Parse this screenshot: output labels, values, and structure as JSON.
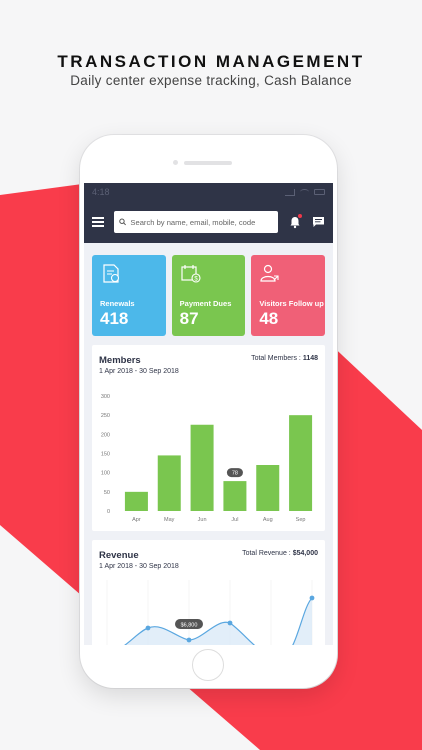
{
  "promo": {
    "title": "TRANSACTION MANAGEMENT",
    "subtitle": "Daily center expense tracking, Cash Balance"
  },
  "status_bar": {
    "time": "4:18"
  },
  "search": {
    "placeholder": "Search by name, email, mobile, code"
  },
  "stat_cards": [
    {
      "label": "Renewals",
      "value": "418",
      "color": "#4cb8ea",
      "icon": "document-refresh-icon"
    },
    {
      "label": "Payment Dues",
      "value": "87",
      "color": "#7ac64f",
      "icon": "calendar-dollar-icon"
    },
    {
      "label": "Visitors Follow up",
      "value": "48",
      "color": "#f06077",
      "icon": "user-return-icon"
    }
  ],
  "members": {
    "title": "Members",
    "range": "1 Apr 2018 - 30 Sep 2018",
    "total_label": "Total Members : ",
    "total_value": "1148"
  },
  "revenue": {
    "title": "Revenue",
    "range": "1 Apr 2018 - 30 Sep 2018",
    "total_label": "Total Revenue : ",
    "total_value": "$54,000",
    "callout": "$6,800"
  },
  "colors": {
    "accent_red": "#f93c4b",
    "appbar": "#2f3447",
    "bar_green": "#7ac64f",
    "line_blue": "#5aa7e0"
  },
  "chart_data": [
    {
      "type": "bar",
      "categories": [
        "Apr",
        "May",
        "Jun",
        "Jul",
        "Aug",
        "Sep"
      ],
      "values": [
        50,
        145,
        225,
        78,
        120,
        250
      ],
      "yticks": [
        0,
        50,
        100,
        150,
        200,
        250,
        300
      ],
      "ylim": [
        0,
        300
      ],
      "callout": {
        "category": "Jul",
        "label": "78"
      }
    }
  ]
}
